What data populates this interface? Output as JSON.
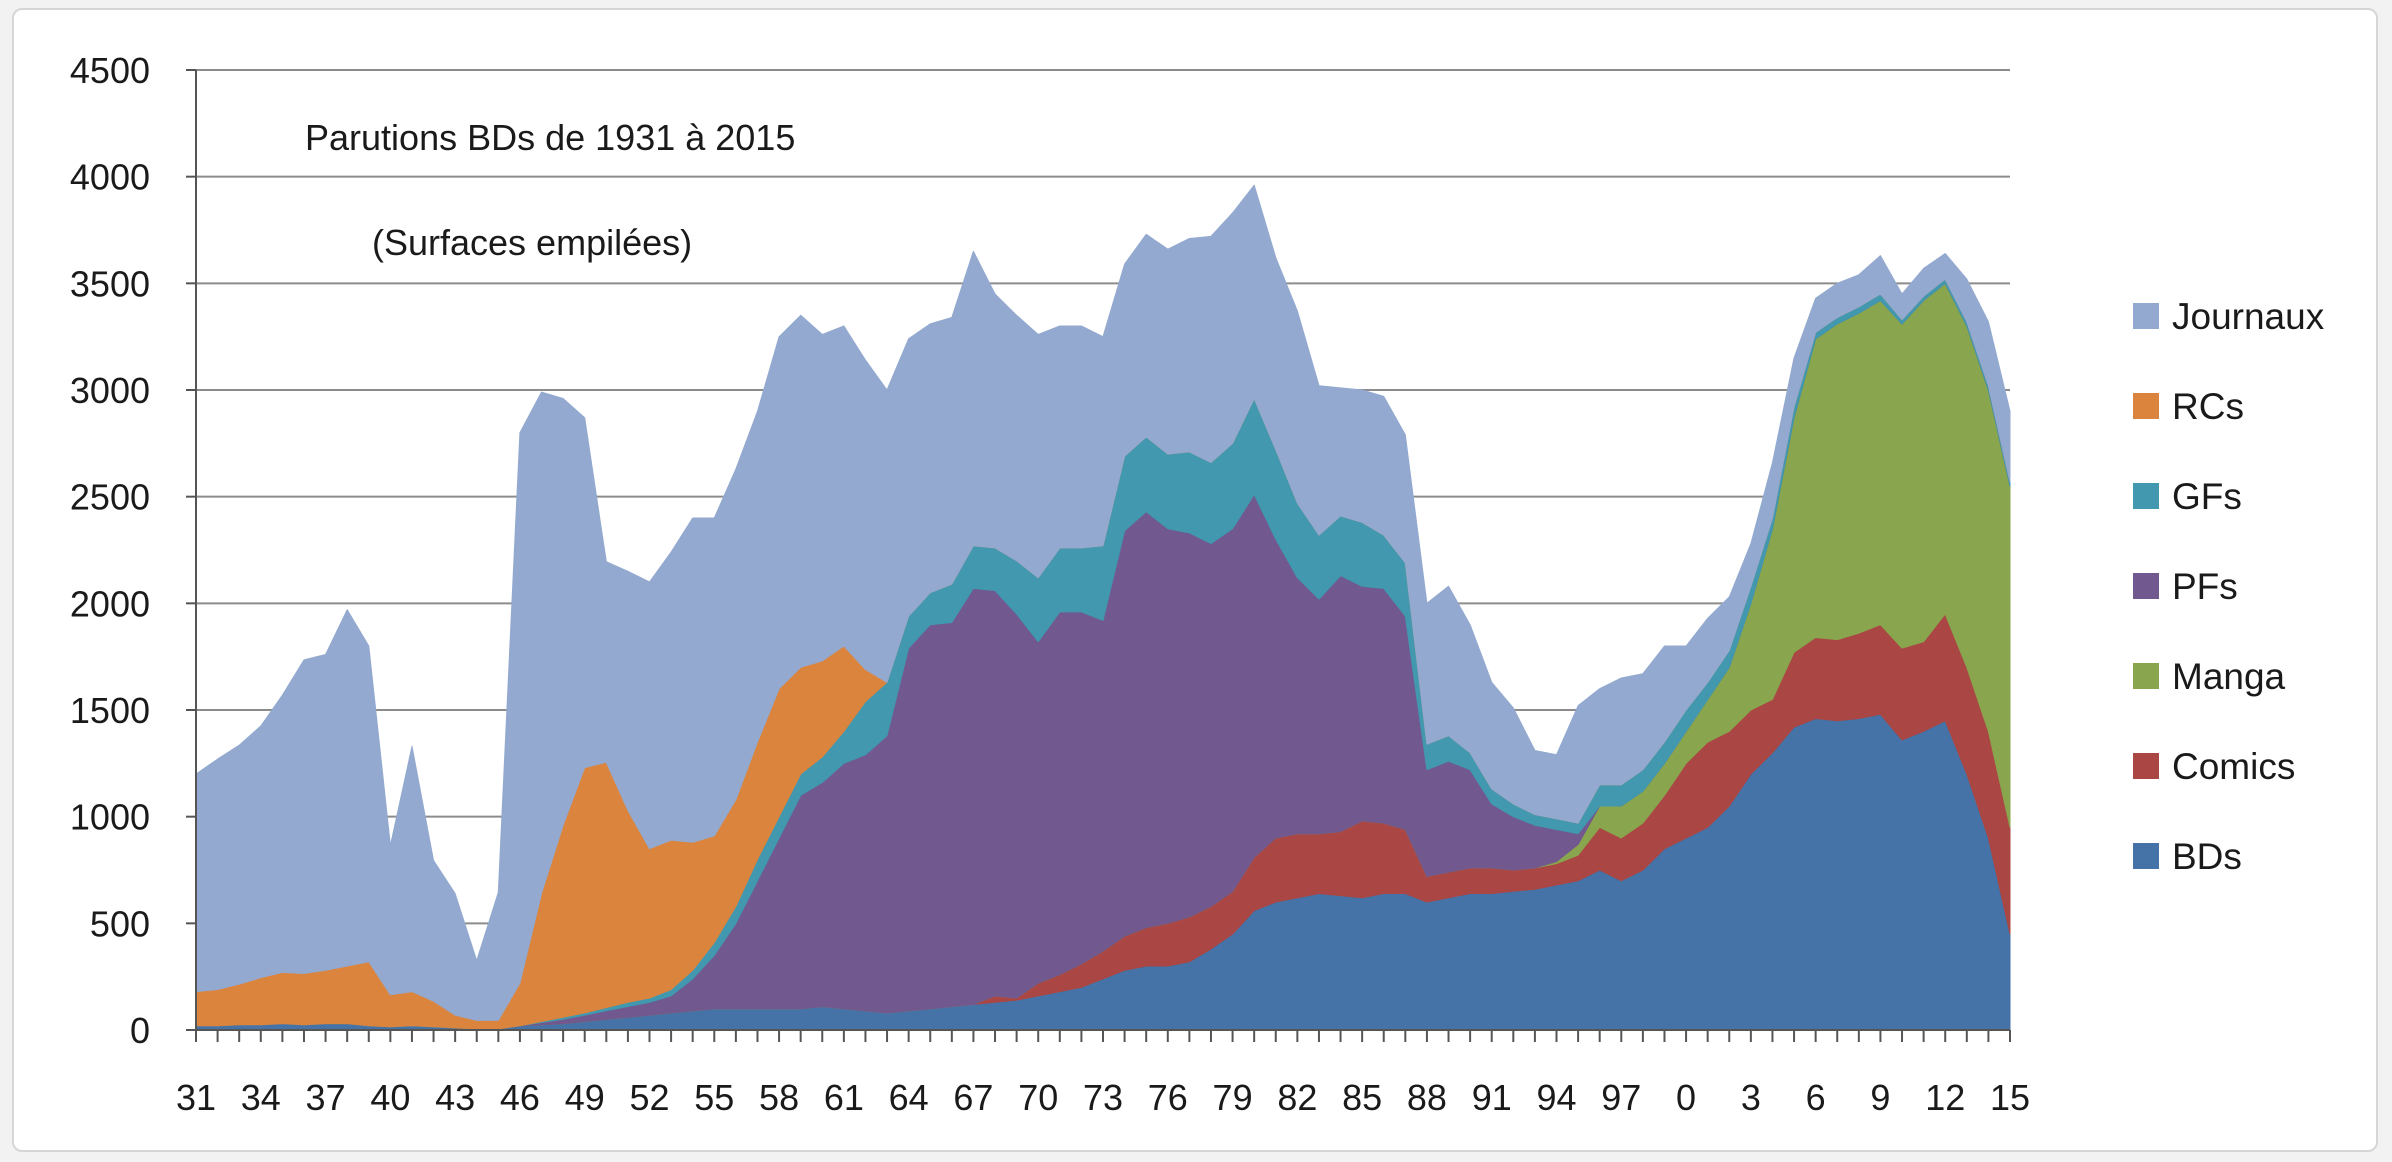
{
  "chart_data": {
    "type": "area",
    "stacked": true,
    "title": "Parutions BDs de 1931 à 2015",
    "subtitle": "(Surfaces empilées)",
    "xlabel": "",
    "ylabel": "",
    "ylim": [
      0,
      4500
    ],
    "yticks": [
      0,
      500,
      1000,
      1500,
      2000,
      2500,
      3000,
      3500,
      4000,
      4500
    ],
    "grid": "horizontal",
    "legend_position": "right",
    "x": [
      1931,
      1932,
      1933,
      1934,
      1935,
      1936,
      1937,
      1938,
      1939,
      1940,
      1941,
      1942,
      1943,
      1944,
      1945,
      1946,
      1947,
      1948,
      1949,
      1950,
      1951,
      1952,
      1953,
      1954,
      1955,
      1956,
      1957,
      1958,
      1959,
      1960,
      1961,
      1962,
      1963,
      1964,
      1965,
      1966,
      1967,
      1968,
      1969,
      1970,
      1971,
      1972,
      1973,
      1974,
      1975,
      1976,
      1977,
      1978,
      1979,
      1980,
      1981,
      1982,
      1983,
      1984,
      1985,
      1986,
      1987,
      1988,
      1989,
      1990,
      1991,
      1992,
      1993,
      1994,
      1995,
      1996,
      1997,
      1998,
      1999,
      2000,
      2001,
      2002,
      2003,
      2004,
      2005,
      2006,
      2007,
      2008,
      2009,
      2010,
      2011,
      2012,
      2013,
      2014,
      2015
    ],
    "x_tick_labels": [
      "31",
      "34",
      "37",
      "40",
      "43",
      "46",
      "49",
      "52",
      "55",
      "58",
      "61",
      "64",
      "67",
      "70",
      "73",
      "76",
      "79",
      "82",
      "85",
      "88",
      "91",
      "94",
      "97",
      "0",
      "3",
      "6",
      "9",
      "12",
      "15"
    ],
    "x_tick_values": [
      1931,
      1934,
      1937,
      1940,
      1943,
      1946,
      1949,
      1952,
      1955,
      1958,
      1961,
      1964,
      1967,
      1970,
      1973,
      1976,
      1979,
      1982,
      1985,
      1988,
      1991,
      1994,
      1997,
      2000,
      2003,
      2006,
      2009,
      2012,
      2015
    ],
    "colors": {
      "BDs": "#4572a7",
      "Comics": "#aa4643",
      "Manga": "#89a54e",
      "PFs": "#71588f",
      "GFs": "#4198af",
      "RCs": "#db843d",
      "Journaux": "#93a9cf"
    },
    "series": [
      {
        "name": "BDs",
        "values": [
          20,
          20,
          25,
          25,
          30,
          25,
          30,
          30,
          20,
          15,
          20,
          15,
          10,
          5,
          5,
          20,
          25,
          30,
          40,
          50,
          60,
          70,
          80,
          90,
          100,
          100,
          100,
          100,
          100,
          110,
          100,
          90,
          80,
          90,
          100,
          110,
          120,
          130,
          140,
          160,
          180,
          200,
          240,
          280,
          300,
          300,
          320,
          380,
          450,
          560,
          600,
          620,
          640,
          630,
          620,
          640,
          640,
          600,
          620,
          640,
          640,
          650,
          660,
          680,
          700,
          750,
          700,
          750,
          850,
          900,
          950,
          1050,
          1200,
          1300,
          1420,
          1460,
          1450,
          1460,
          1480,
          1360,
          1400,
          1450,
          1200,
          900,
          450
        ]
      },
      {
        "name": "Comics",
        "values": [
          0,
          0,
          0,
          0,
          0,
          0,
          0,
          0,
          0,
          0,
          0,
          0,
          0,
          0,
          0,
          0,
          0,
          0,
          0,
          0,
          0,
          0,
          0,
          0,
          0,
          0,
          0,
          0,
          0,
          0,
          0,
          0,
          0,
          0,
          0,
          0,
          0,
          30,
          10,
          60,
          80,
          110,
          130,
          160,
          180,
          200,
          210,
          200,
          200,
          250,
          300,
          300,
          280,
          300,
          360,
          330,
          300,
          120,
          120,
          120,
          120,
          100,
          100,
          100,
          120,
          200,
          200,
          220,
          250,
          350,
          400,
          350,
          300,
          250,
          350,
          380,
          380,
          400,
          420,
          430,
          420,
          500,
          500,
          500,
          500
        ]
      },
      {
        "name": "Manga",
        "values": [
          0,
          0,
          0,
          0,
          0,
          0,
          0,
          0,
          0,
          0,
          0,
          0,
          0,
          0,
          0,
          0,
          0,
          0,
          0,
          0,
          0,
          0,
          0,
          0,
          0,
          0,
          0,
          0,
          0,
          0,
          0,
          0,
          0,
          0,
          0,
          0,
          0,
          0,
          0,
          0,
          0,
          0,
          0,
          0,
          0,
          0,
          0,
          0,
          0,
          0,
          0,
          0,
          0,
          0,
          0,
          0,
          0,
          0,
          0,
          0,
          0,
          0,
          0,
          10,
          50,
          100,
          150,
          150,
          150,
          150,
          200,
          300,
          500,
          800,
          1100,
          1400,
          1480,
          1500,
          1520,
          1520,
          1600,
          1550,
          1600,
          1600,
          1600
        ]
      },
      {
        "name": "PFs",
        "values": [
          0,
          0,
          0,
          0,
          0,
          0,
          0,
          0,
          0,
          0,
          0,
          0,
          0,
          0,
          0,
          0,
          10,
          20,
          30,
          40,
          50,
          60,
          80,
          150,
          250,
          400,
          600,
          800,
          1000,
          1050,
          1150,
          1200,
          1300,
          1700,
          1800,
          1800,
          1950,
          1900,
          1800,
          1600,
          1700,
          1650,
          1550,
          1900,
          1950,
          1850,
          1800,
          1700,
          1700,
          1700,
          1400,
          1200,
          1100,
          1200,
          1100,
          1100,
          1000,
          500,
          520,
          460,
          300,
          250,
          200,
          150,
          50,
          0,
          0,
          0,
          0,
          0,
          0,
          0,
          0,
          0,
          0,
          0,
          0,
          0,
          0,
          0,
          0,
          0,
          0,
          0,
          0
        ]
      },
      {
        "name": "GFs",
        "values": [
          0,
          0,
          0,
          0,
          0,
          0,
          0,
          0,
          0,
          0,
          0,
          0,
          0,
          0,
          0,
          0,
          5,
          10,
          10,
          15,
          20,
          20,
          30,
          40,
          60,
          80,
          100,
          100,
          100,
          120,
          150,
          250,
          250,
          150,
          150,
          180,
          200,
          200,
          250,
          300,
          300,
          300,
          350,
          350,
          350,
          350,
          380,
          380,
          400,
          450,
          420,
          350,
          300,
          280,
          300,
          250,
          250,
          120,
          120,
          80,
          70,
          60,
          50,
          50,
          50,
          100,
          100,
          100,
          100,
          100,
          80,
          80,
          80,
          50,
          50,
          30,
          30,
          30,
          30,
          20,
          20,
          20,
          20,
          20,
          20
        ]
      },
      {
        "name": "RCs",
        "values": [
          160,
          170,
          190,
          220,
          240,
          240,
          250,
          270,
          300,
          150,
          160,
          120,
          60,
          40,
          40,
          200,
          600,
          900,
          1150,
          1150,
          900,
          700,
          700,
          600,
          500,
          500,
          550,
          600,
          500,
          450,
          400,
          150,
          0,
          0,
          0,
          0,
          0,
          0,
          0,
          0,
          0,
          0,
          0,
          0,
          0,
          0,
          0,
          0,
          0,
          0,
          0,
          0,
          0,
          0,
          0,
          0,
          0,
          0,
          0,
          0,
          0,
          0,
          0,
          0,
          0,
          0,
          0,
          0,
          0,
          0,
          0,
          0,
          0,
          0,
          0,
          0,
          0,
          0,
          0,
          0,
          0,
          0,
          0,
          0,
          0
        ]
      },
      {
        "name": "Journaux",
        "values": [
          1020,
          1080,
          1120,
          1180,
          1300,
          1470,
          1480,
          1670,
          1480,
          700,
          1150,
          660,
          570,
          280,
          600,
          2580,
          2350,
          2000,
          1640,
          940,
          1120,
          1250,
          1350,
          1520,
          1490,
          1550,
          1550,
          1650,
          1650,
          1530,
          1500,
          1450,
          1370,
          1300,
          1260,
          1250,
          1380,
          1190,
          1150,
          1140,
          1040,
          1040,
          980,
          900,
          950,
          960,
          1000,
          1060,
          1080,
          1000,
          900,
          900,
          700,
          600,
          620,
          650,
          600,
          660,
          700,
          600,
          500,
          450,
          300,
          300,
          550,
          450,
          500,
          450,
          450,
          300,
          300,
          250,
          200,
          260,
          230,
          160,
          160,
          150,
          180,
          120,
          130,
          120,
          200,
          300,
          330
        ]
      }
    ]
  }
}
